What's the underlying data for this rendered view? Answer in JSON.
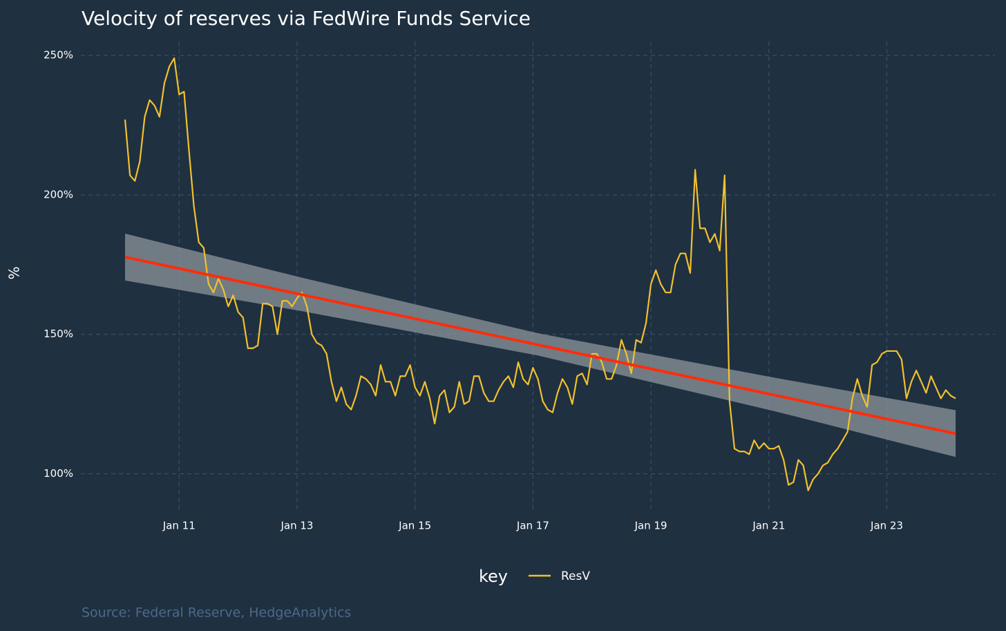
{
  "chart_data": {
    "type": "line",
    "title": "Velocity of reserves via FedWire Funds Service",
    "y_label": "%",
    "caption": "Source: Federal Reserve, HedgeAnalytics",
    "legend_title": "key",
    "legend_position": "bottom",
    "grid": true,
    "background": "#1f3040",
    "xlim": [
      "2009-05",
      "2024-11"
    ],
    "ylim": [
      86,
      255
    ],
    "xticks": [
      {
        "value": "2011-01",
        "label": "Jan 11"
      },
      {
        "value": "2013-01",
        "label": "Jan 13"
      },
      {
        "value": "2015-01",
        "label": "Jan 15"
      },
      {
        "value": "2017-01",
        "label": "Jan 17"
      },
      {
        "value": "2019-01",
        "label": "Jan 19"
      },
      {
        "value": "2021-01",
        "label": "Jan 21"
      },
      {
        "value": "2023-01",
        "label": "Jan 23"
      }
    ],
    "yticks": [
      {
        "value": 100,
        "label": "100%"
      },
      {
        "value": 150,
        "label": "150%"
      },
      {
        "value": 200,
        "label": "200%"
      },
      {
        "value": 250,
        "label": "250%"
      }
    ],
    "x": [
      "2010-02",
      "2010-03",
      "2010-04",
      "2010-05",
      "2010-06",
      "2010-07",
      "2010-08",
      "2010-09",
      "2010-10",
      "2010-11",
      "2010-12",
      "2011-01",
      "2011-02",
      "2011-03",
      "2011-04",
      "2011-05",
      "2011-06",
      "2011-07",
      "2011-08",
      "2011-09",
      "2011-10",
      "2011-11",
      "2011-12",
      "2012-01",
      "2012-02",
      "2012-03",
      "2012-04",
      "2012-05",
      "2012-06",
      "2012-07",
      "2012-08",
      "2012-09",
      "2012-10",
      "2012-11",
      "2012-12",
      "2013-01",
      "2013-02",
      "2013-03",
      "2013-04",
      "2013-05",
      "2013-06",
      "2013-07",
      "2013-08",
      "2013-09",
      "2013-10",
      "2013-11",
      "2013-12",
      "2014-01",
      "2014-02",
      "2014-03",
      "2014-04",
      "2014-05",
      "2014-06",
      "2014-07",
      "2014-08",
      "2014-09",
      "2014-10",
      "2014-11",
      "2014-12",
      "2015-01",
      "2015-02",
      "2015-03",
      "2015-04",
      "2015-05",
      "2015-06",
      "2015-07",
      "2015-08",
      "2015-09",
      "2015-10",
      "2015-11",
      "2015-12",
      "2016-01",
      "2016-02",
      "2016-03",
      "2016-04",
      "2016-05",
      "2016-06",
      "2016-07",
      "2016-08",
      "2016-09",
      "2016-10",
      "2016-11",
      "2016-12",
      "2017-01",
      "2017-02",
      "2017-03",
      "2017-04",
      "2017-05",
      "2017-06",
      "2017-07",
      "2017-08",
      "2017-09",
      "2017-10",
      "2017-11",
      "2017-12",
      "2018-01",
      "2018-02",
      "2018-03",
      "2018-04",
      "2018-05",
      "2018-06",
      "2018-07",
      "2018-08",
      "2018-09",
      "2018-10",
      "2018-11",
      "2018-12",
      "2019-01",
      "2019-02",
      "2019-03",
      "2019-04",
      "2019-05",
      "2019-06",
      "2019-07",
      "2019-08",
      "2019-09",
      "2019-10",
      "2019-11",
      "2019-12",
      "2020-01",
      "2020-02",
      "2020-03",
      "2020-04",
      "2020-05",
      "2020-06",
      "2020-07",
      "2020-08",
      "2020-09",
      "2020-10",
      "2020-11",
      "2020-12",
      "2021-01",
      "2021-02",
      "2021-03",
      "2021-04",
      "2021-05",
      "2021-06",
      "2021-07",
      "2021-08",
      "2021-09",
      "2021-10",
      "2021-11",
      "2021-12",
      "2022-01",
      "2022-02",
      "2022-03",
      "2022-04",
      "2022-05",
      "2022-06",
      "2022-07",
      "2022-08",
      "2022-09",
      "2022-10",
      "2022-11",
      "2022-12",
      "2023-01",
      "2023-02",
      "2023-03",
      "2023-04",
      "2023-05",
      "2023-06",
      "2023-07",
      "2023-08",
      "2023-09",
      "2023-10",
      "2023-11",
      "2023-12",
      "2024-01",
      "2024-02",
      "2024-03"
    ],
    "series": [
      {
        "name": "ResV",
        "color": "#f2c12e",
        "values": [
          227,
          207,
          205,
          212,
          228,
          234,
          232,
          228,
          240,
          246,
          249,
          236,
          237,
          216,
          196,
          183,
          181,
          168,
          165,
          170,
          166,
          160,
          164,
          158,
          156,
          145,
          145,
          146,
          161,
          161,
          160,
          150,
          162,
          162,
          160,
          163,
          165,
          160,
          150,
          147,
          146,
          143,
          133,
          126,
          131,
          125,
          123,
          128,
          135,
          134,
          132,
          128,
          139,
          133,
          133,
          128,
          135,
          135,
          139,
          131,
          128,
          133,
          127,
          118,
          128,
          130,
          122,
          124,
          133,
          125,
          126,
          135,
          135,
          129,
          126,
          126,
          130,
          133,
          135,
          131,
          140,
          134,
          132,
          138,
          134,
          126,
          123,
          122,
          129,
          134,
          131,
          125,
          135,
          136,
          132,
          143,
          143,
          140,
          134,
          134,
          139,
          148,
          143,
          136,
          148,
          147,
          154,
          168,
          173,
          168,
          165,
          165,
          175,
          179,
          179,
          172,
          209,
          188,
          188,
          183,
          186,
          180,
          207,
          126,
          109,
          108,
          108,
          107,
          112,
          109,
          111,
          109,
          109,
          110,
          105,
          96,
          97,
          105,
          103,
          94,
          98,
          100,
          103,
          104,
          107,
          109,
          112,
          115,
          127,
          134,
          128,
          124,
          139,
          140,
          143,
          144,
          144,
          144,
          141,
          127,
          133,
          137,
          133,
          129,
          135,
          131,
          127,
          130,
          128,
          127
        ]
      }
    ],
    "trend": {
      "color": "#ff2d0a",
      "x": [
        "2010-02",
        "2024-03"
      ],
      "values": [
        177.7,
        114.4
      ]
    },
    "band": {
      "color": "#8c949b",
      "x": [
        "2010-02",
        "2013-02",
        "2017-02",
        "2021-02",
        "2024-03"
      ],
      "upper": [
        186.1,
        170.3,
        150.4,
        134.5,
        122.8
      ],
      "lower": [
        169.3,
        158.3,
        142.4,
        122.5,
        106.0
      ]
    }
  }
}
